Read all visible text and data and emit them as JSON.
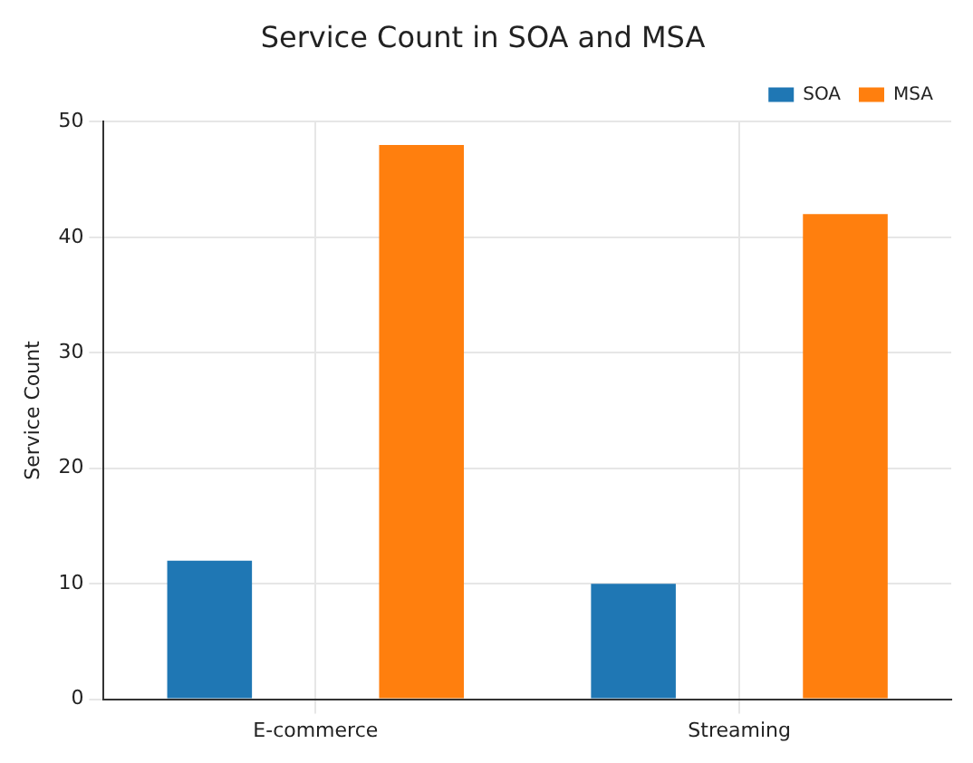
{
  "chart_data": {
    "type": "bar",
    "title": "Service Count in SOA and MSA",
    "ylabel": "Service Count",
    "categories": [
      "E-commerce",
      "Streaming"
    ],
    "series": [
      {
        "name": "SOA",
        "color": "#1f77b4",
        "values": [
          12,
          10
        ]
      },
      {
        "name": "MSA",
        "color": "#ff7f0e",
        "values": [
          48,
          42
        ]
      }
    ],
    "ylim": [
      0,
      50
    ],
    "yticks": [
      0,
      10,
      20,
      30,
      40,
      50
    ],
    "grid": true,
    "legend": "top right"
  }
}
